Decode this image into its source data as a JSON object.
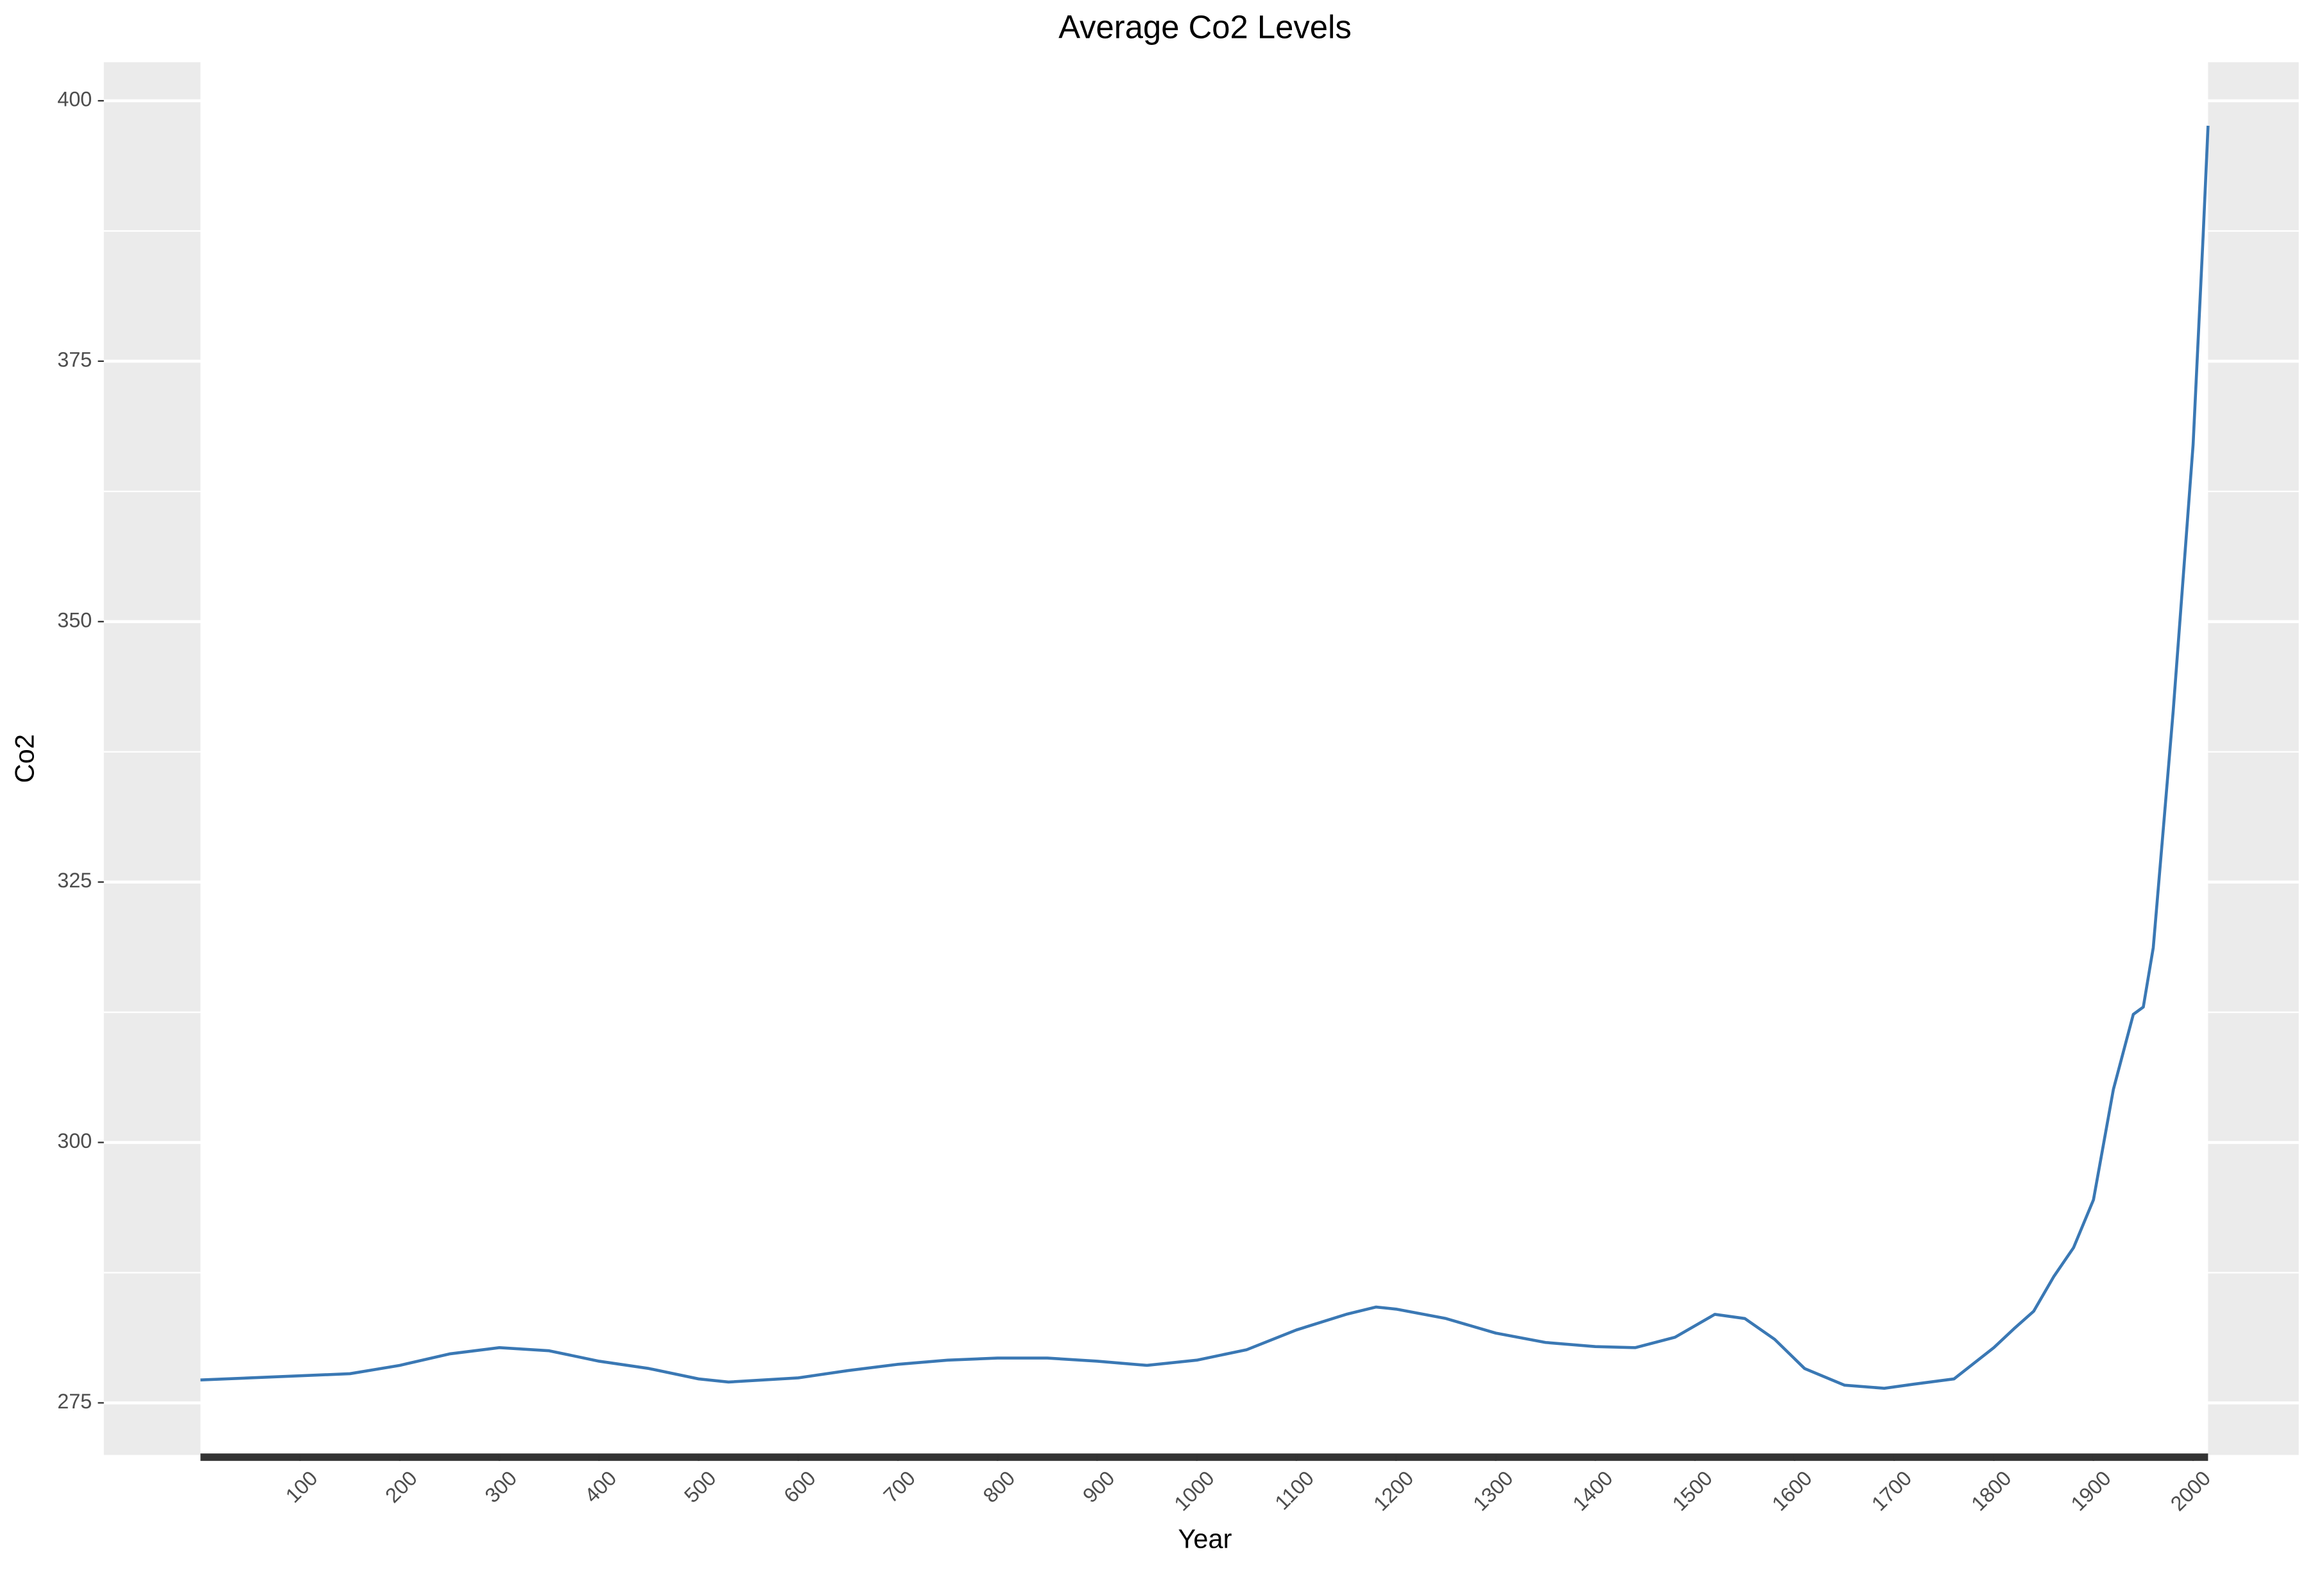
{
  "chart_data": {
    "type": "line",
    "title": "Average Co2 Levels",
    "x_label": "Year",
    "y_label": "Co2",
    "x": [
      0,
      50,
      100,
      150,
      200,
      250,
      300,
      350,
      400,
      450,
      500,
      530,
      600,
      650,
      700,
      750,
      800,
      850,
      900,
      950,
      1000,
      1050,
      1100,
      1150,
      1180,
      1200,
      1250,
      1300,
      1350,
      1400,
      1440,
      1480,
      1520,
      1550,
      1580,
      1610,
      1650,
      1690,
      1720,
      1760,
      1780,
      1800,
      1820,
      1840,
      1860,
      1880,
      1900,
      1920,
      1940,
      1950,
      1960,
      1970,
      1980,
      1990,
      2000,
      2010,
      2015
    ],
    "values": [
      277.2,
      277.4,
      277.6,
      277.8,
      278.6,
      279.7,
      280.3,
      280.0,
      279.0,
      278.3,
      277.3,
      277.0,
      277.4,
      278.1,
      278.7,
      279.1,
      279.3,
      279.3,
      279.0,
      278.6,
      279.1,
      280.1,
      282.0,
      283.5,
      284.2,
      284.0,
      283.1,
      281.7,
      280.8,
      280.4,
      280.3,
      281.3,
      283.5,
      283.1,
      281.1,
      278.3,
      276.7,
      276.4,
      276.8,
      277.3,
      278.8,
      280.3,
      282.1,
      283.8,
      287.1,
      289.9,
      294.5,
      305.1,
      312.3,
      313.0,
      318.7,
      330.0,
      341.4,
      354.2,
      367.0,
      386.9,
      397.6
    ],
    "color": "#3a78b4",
    "xlim": [
      -97,
      2106
    ],
    "ylim": [
      270,
      403.7
    ],
    "xticks": [
      100,
      200,
      300,
      400,
      500,
      600,
      700,
      800,
      900,
      1000,
      1100,
      1200,
      1300,
      1400,
      1500,
      1600,
      1700,
      1800,
      1900,
      2000
    ],
    "yticks": [
      275,
      300,
      325,
      350,
      375,
      400
    ],
    "y_minor_ticks": [
      287.5,
      312.5,
      337.5,
      362.5,
      387.5
    ],
    "grid": true
  }
}
